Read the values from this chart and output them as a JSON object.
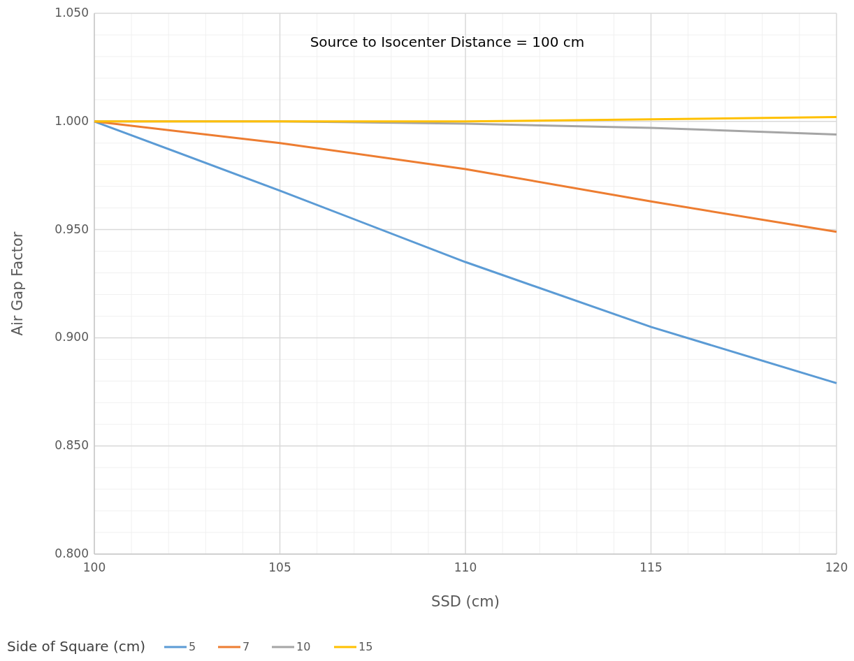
{
  "chart_data": {
    "type": "line",
    "title": "Source to Isocenter Distance = 100 cm",
    "xlabel": "SSD (cm)",
    "ylabel": "Air Gap Factor",
    "legend_title": "Side of Square (cm)",
    "x": [
      100,
      105,
      110,
      115,
      120
    ],
    "series": [
      {
        "name": "5",
        "color": "#5b9bd5",
        "values": [
          1.0,
          0.968,
          0.935,
          0.905,
          0.879
        ]
      },
      {
        "name": "7",
        "color": "#ed7d31",
        "values": [
          1.0,
          0.99,
          0.978,
          0.963,
          0.949
        ]
      },
      {
        "name": "10",
        "color": "#a5a5a5",
        "values": [
          1.0,
          1.0,
          0.999,
          0.997,
          0.994
        ]
      },
      {
        "name": "15",
        "color": "#ffc000",
        "values": [
          1.0,
          1.0,
          1.0,
          1.001,
          1.002
        ]
      }
    ],
    "xlim": [
      100,
      120
    ],
    "xticks": [
      100,
      105,
      110,
      115,
      120
    ],
    "ylim": [
      0.8,
      1.05
    ],
    "yticks": [
      {
        "value": 0.8,
        "label": "0.800"
      },
      {
        "value": 0.85,
        "label": "0.850"
      },
      {
        "value": 0.9,
        "label": "0.900"
      },
      {
        "value": 0.95,
        "label": "0.950"
      },
      {
        "value": 1.0,
        "label": "1.000"
      },
      {
        "value": 1.05,
        "label": "1.050"
      }
    ],
    "grid": true,
    "legend": "bottom",
    "marker": "none",
    "line_style": "solid"
  }
}
